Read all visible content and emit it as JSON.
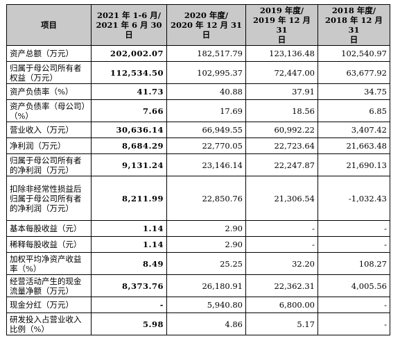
{
  "table": {
    "headers": [
      "项目",
      "2021 年 1-6 月/\n2021 年 6 月 30\n日",
      "2020 年度/\n2020 年 12 月 31\n日",
      "2019 年度/\n2019 年 12 月 31\n日",
      "2018 年度/\n2018 年 12 月 31\n日"
    ],
    "rows": [
      {
        "label": "资产总额（万元）",
        "v": [
          "202,002.07",
          "182,517.79",
          "123,136.48",
          "102,540.97"
        ]
      },
      {
        "label": "归属于母公司所有者权益（万元）",
        "v": [
          "112,534.50",
          "102,995.37",
          "72,447.00",
          "63,677.92"
        ]
      },
      {
        "label": "资产负债率（%）",
        "v": [
          "41.73",
          "40.88",
          "37.91",
          "34.75"
        ]
      },
      {
        "label": "资产负债率（母公司）（%）",
        "v": [
          "7.66",
          "17.69",
          "18.56",
          "6.85"
        ]
      },
      {
        "label": "营业收入（万元）",
        "v": [
          "30,636.14",
          "66,949.55",
          "60,992.22",
          "3,407.42"
        ]
      },
      {
        "label": "净利润（万元）",
        "v": [
          "8,684.29",
          "22,770.05",
          "22,723.64",
          "21,663.48"
        ]
      },
      {
        "label": "归属于母公司所有者的净利润（万元）",
        "v": [
          "9,131.24",
          "23,146.14",
          "22,247.87",
          "21,690.13"
        ]
      },
      {
        "label": "扣除非经常性损益后归属于母公司所有者的净利润（万元）",
        "v": [
          "8,211.99",
          "22,850.76",
          "21,306.54",
          "-1,032.43"
        ]
      },
      {
        "label": "基本每股收益（元）",
        "v": [
          "1.14",
          "2.90",
          "-",
          "-"
        ]
      },
      {
        "label": "稀释每股收益（元）",
        "v": [
          "1.14",
          "2.90",
          "-",
          "-"
        ]
      },
      {
        "label": "加权平均净资产收益率（%）",
        "v": [
          "8.49",
          "25.25",
          "32.20",
          "108.27"
        ]
      },
      {
        "label": "经营活动产生的现金流量净额（万元）",
        "v": [
          "8,373.76",
          "26,180.91",
          "22,362.31",
          "4,005.56"
        ]
      },
      {
        "label": "现金分红（万元）",
        "v": [
          "-",
          "5,940.80",
          "6,800.00",
          "-"
        ]
      },
      {
        "label": "研发投入占营业收入比例（%）",
        "v": [
          "5.98",
          "4.86",
          "5.17",
          "-"
        ]
      }
    ]
  }
}
